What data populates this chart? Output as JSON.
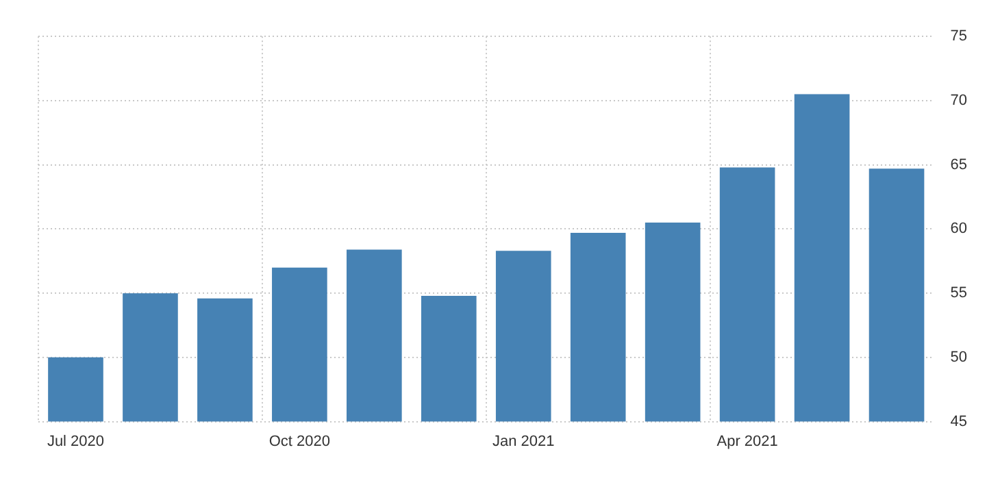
{
  "chart_data": {
    "type": "bar",
    "categories": [
      "Jul 2020",
      null,
      null,
      "Oct 2020",
      null,
      null,
      "Jan 2021",
      null,
      null,
      "Apr 2021",
      null,
      null
    ],
    "values": [
      50,
      55,
      54.6,
      57,
      58.4,
      54.8,
      58.3,
      59.7,
      60.5,
      64.8,
      70.5,
      64.7
    ],
    "color": "#4682b4",
    "ylim": [
      45,
      75
    ],
    "yticks": [
      45,
      50,
      55,
      60,
      65,
      70,
      75
    ],
    "grid": true
  }
}
